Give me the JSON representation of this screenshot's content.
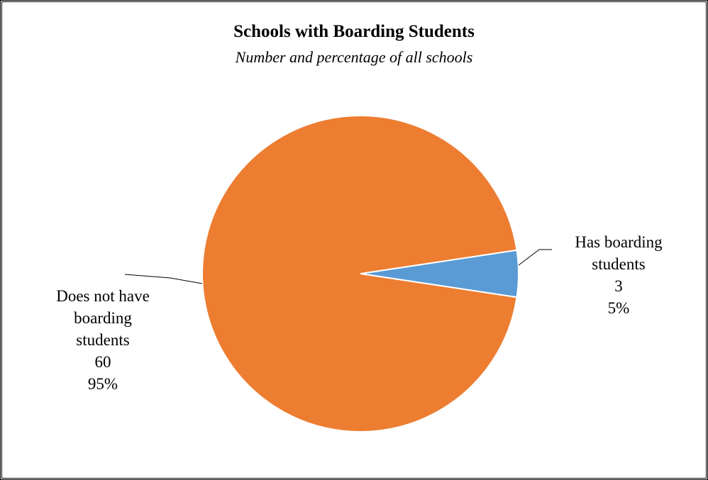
{
  "chart_data": {
    "type": "pie",
    "title": "Schools with Boarding Students",
    "subtitle": "Number and percentage of all schools",
    "slices": [
      {
        "label_lines": [
          "Has boarding",
          "students"
        ],
        "value": 3,
        "value_label": "3",
        "percent_label": "5%",
        "color": "#5B9BD5"
      },
      {
        "label_lines": [
          "Does not have",
          "boarding",
          "students"
        ],
        "value": 60,
        "value_label": "60",
        "percent_label": "95%",
        "color": "#ED7D31"
      }
    ]
  }
}
